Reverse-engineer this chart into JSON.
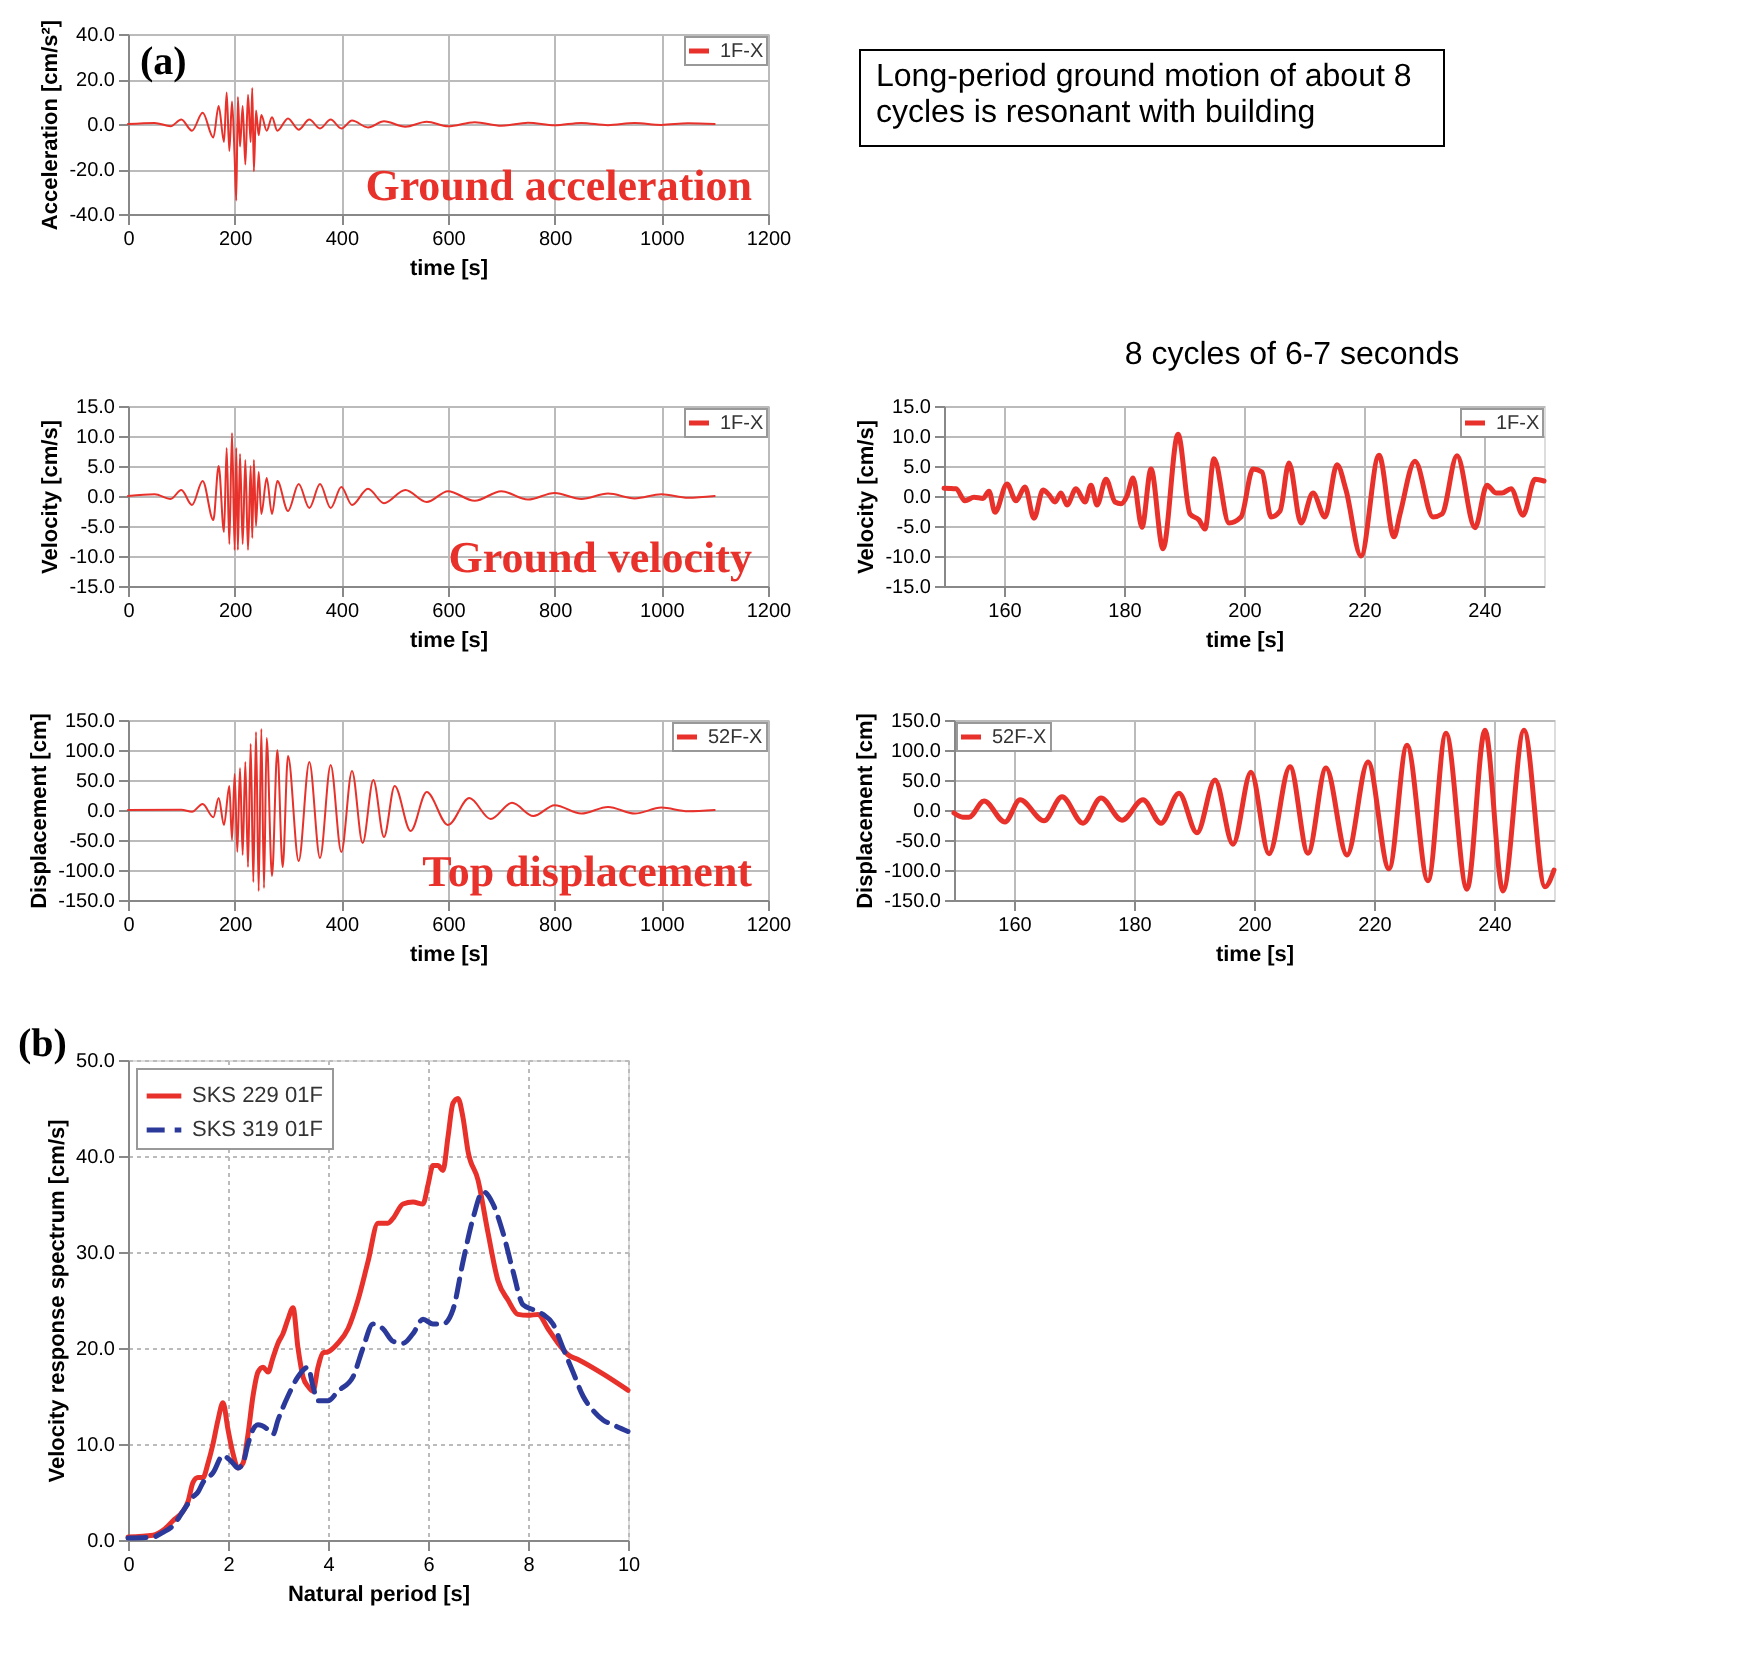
{
  "chart_data": [
    {
      "type": "line",
      "xlabel": "time [s]",
      "ylabel": "Acceleration [cm/s²]",
      "xlim": [
        0,
        1200
      ],
      "ylim": [
        -40,
        40
      ],
      "xticks": [
        0,
        200,
        400,
        600,
        800,
        1000,
        1200
      ],
      "yticks": [
        {
          "value": -40,
          "label": "-40.0"
        },
        {
          "value": -20,
          "label": "-20.0"
        },
        {
          "value": 0,
          "label": "0.0"
        },
        {
          "value": 20,
          "label": "20.0"
        },
        {
          "value": 40,
          "label": "40.0"
        }
      ],
      "grid": true,
      "legend": "top right",
      "annotations": [
        "(a)",
        "Ground acceleration"
      ],
      "x": [
        0,
        50,
        80,
        100,
        120,
        140,
        160,
        170,
        180,
        185,
        190,
        195,
        200,
        203,
        206,
        210,
        215,
        220,
        225,
        230,
        233,
        236,
        240,
        245,
        250,
        260,
        270,
        280,
        300,
        320,
        340,
        360,
        380,
        400,
        420,
        450,
        480,
        520,
        560,
        600,
        650,
        700,
        750,
        800,
        850,
        900,
        950,
        1000,
        1050,
        1100
      ],
      "series": [
        {
          "name": "1F-X",
          "color": "#e8312a",
          "values": [
            0,
            0.5,
            -1,
            2,
            -3,
            5,
            -6,
            8,
            -8,
            14,
            -12,
            10,
            -15,
            -34,
            12,
            -10,
            8,
            -18,
            13,
            -8,
            16,
            -21,
            6,
            -5,
            4,
            -3,
            3,
            -3,
            2.5,
            -2.5,
            2,
            -2,
            2,
            -2,
            1.5,
            -1.5,
            1.2,
            -1.2,
            1,
            -1,
            0.8,
            -0.8,
            0.6,
            -0.6,
            0.5,
            -0.5,
            0.4,
            -0.4,
            0.3,
            0
          ]
        }
      ]
    },
    {
      "type": "other",
      "annotations": [
        "Long-period ground motion of about 8 cycles is resonant with building"
      ]
    },
    {
      "type": "line",
      "xlabel": "time [s]",
      "ylabel": "Velocity [cm/s]",
      "xlim": [
        0,
        1200
      ],
      "ylim": [
        -15,
        15
      ],
      "xticks": [
        0,
        200,
        400,
        600,
        800,
        1000,
        1200
      ],
      "yticks": [
        {
          "value": -15,
          "label": "-15.0"
        },
        {
          "value": -10,
          "label": "-10.0"
        },
        {
          "value": -5,
          "label": "-5.0"
        },
        {
          "value": 0,
          "label": "0.0"
        },
        {
          "value": 5,
          "label": "5.0"
        },
        {
          "value": 10,
          "label": "10.0"
        },
        {
          "value": 15,
          "label": "15.0"
        }
      ],
      "grid": true,
      "legend": "top right",
      "annotations": [
        "Ground velocity"
      ],
      "x": [
        0,
        50,
        80,
        100,
        120,
        140,
        160,
        170,
        180,
        185,
        190,
        195,
        200,
        203,
        206,
        210,
        215,
        220,
        225,
        230,
        233,
        236,
        240,
        245,
        250,
        260,
        270,
        280,
        300,
        320,
        340,
        360,
        380,
        400,
        420,
        450,
        480,
        520,
        560,
        600,
        650,
        700,
        750,
        800,
        850,
        900,
        950,
        1000,
        1050,
        1100
      ],
      "series": [
        {
          "name": "1F-X",
          "color": "#e8312a",
          "values": [
            0,
            0.3,
            -0.5,
            1,
            -1.5,
            2.5,
            -4,
            5,
            -6,
            8,
            -8,
            10.5,
            -9,
            8,
            -9,
            7,
            -8,
            6,
            -9,
            5,
            -7,
            6,
            -5,
            4,
            -3,
            3,
            -3,
            2.5,
            -2.5,
            2,
            -2,
            2,
            -2,
            1.5,
            -1.5,
            1.2,
            -1.2,
            1,
            -1,
            0.8,
            -0.8,
            0.8,
            -0.6,
            0.5,
            -0.5,
            0.4,
            -0.4,
            0.3,
            -0.3,
            0
          ]
        }
      ]
    },
    {
      "type": "line",
      "xlabel": "time [s]",
      "ylabel": "Velocity [cm/s]",
      "xlim": [
        150,
        250
      ],
      "ylim": [
        -15,
        15
      ],
      "xticks": [
        160,
        180,
        200,
        220,
        240
      ],
      "yticks": [
        {
          "value": -15,
          "label": "-15.0"
        },
        {
          "value": -10,
          "label": "-10.0"
        },
        {
          "value": -5,
          "label": "-5.0"
        },
        {
          "value": 0,
          "label": "0.0"
        },
        {
          "value": 5,
          "label": "5.0"
        },
        {
          "value": 10,
          "label": "10.0"
        },
        {
          "value": 15,
          "label": "15.0"
        }
      ],
      "grid": true,
      "legend": "top right",
      "annotations": [
        "8 cycles of 6-7 seconds"
      ],
      "x": [
        150,
        152,
        153.5,
        155,
        156.5,
        157.5,
        158.5,
        160.5,
        162,
        163.5,
        165,
        166.5,
        167.5,
        168.5,
        169.5,
        170.5,
        172,
        173.5,
        174.5,
        175.5,
        177,
        178.5,
        179.5,
        180.5,
        181.5,
        183,
        184.5,
        186.5,
        189,
        191,
        192.5,
        193.5,
        195,
        197.5,
        199.5,
        201.5,
        203,
        204.5,
        206,
        207.5,
        209.5,
        211.5,
        213.5,
        215.5,
        217,
        219.5,
        222.5,
        225,
        226,
        228.5,
        231.5,
        233,
        235.5,
        238.5,
        240.5,
        242,
        243,
        244.5,
        246.5,
        248.5,
        250
      ],
      "series": [
        {
          "name": "1F-X",
          "color": "#e8312a",
          "values": [
            1.3,
            1.2,
            -0.8,
            -0.2,
            -0.4,
            0.8,
            -2.7,
            2.0,
            -0.8,
            1.5,
            -3.7,
            1.0,
            0.2,
            -1.0,
            0.5,
            -1.5,
            1.2,
            -1.0,
            1.8,
            -1.5,
            2.8,
            -1.0,
            -1.3,
            0.0,
            3.0,
            -5.2,
            4.5,
            -8.8,
            10.3,
            -3.0,
            -4.0,
            -5.5,
            6.2,
            -4.5,
            -3.5,
            4.5,
            4.0,
            -3.5,
            -2.5,
            5.5,
            -4.5,
            0.5,
            -3.5,
            5.2,
            1.0,
            -10.0,
            6.8,
            -6.8,
            -3.0,
            5.8,
            -3.5,
            -3.0,
            6.7,
            -5.3,
            1.8,
            0.5,
            0.5,
            1.2,
            -3.2,
            2.8,
            2.5
          ]
        }
      ]
    },
    {
      "type": "line",
      "xlabel": "time [s]",
      "ylabel": "Displacement [cm]",
      "xlim": [
        0,
        1200
      ],
      "ylim": [
        -150,
        150
      ],
      "xticks": [
        0,
        200,
        400,
        600,
        800,
        1000,
        1200
      ],
      "yticks": [
        {
          "value": -150,
          "label": "-150.0"
        },
        {
          "value": -100,
          "label": "-100.0"
        },
        {
          "value": -50,
          "label": "-50.0"
        },
        {
          "value": 0,
          "label": "0.0"
        },
        {
          "value": 50,
          "label": "50.0"
        },
        {
          "value": 100,
          "label": "100.0"
        },
        {
          "value": 150,
          "label": "150.0"
        }
      ],
      "grid": true,
      "legend": "top right",
      "annotations": [
        "Top displacement"
      ],
      "x": [
        0,
        100,
        120,
        140,
        160,
        170,
        180,
        190,
        195,
        200,
        205,
        210,
        215,
        220,
        225,
        230,
        235,
        240,
        245,
        250,
        255,
        260,
        270,
        280,
        290,
        300,
        320,
        340,
        360,
        380,
        400,
        420,
        440,
        460,
        480,
        500,
        530,
        560,
        600,
        640,
        680,
        720,
        760,
        800,
        850,
        900,
        950,
        1000,
        1050,
        1100
      ],
      "series": [
        {
          "name": "52F-X",
          "color": "#e8312a",
          "values": [
            0,
            0.5,
            -3,
            10,
            -12,
            20,
            -25,
            40,
            -50,
            60,
            -70,
            70,
            -75,
            80,
            -95,
            110,
            -120,
            130,
            -135,
            135,
            -130,
            120,
            -110,
            100,
            -95,
            90,
            -85,
            80,
            -80,
            75,
            -70,
            65,
            -55,
            50,
            -45,
            40,
            -35,
            30,
            -25,
            20,
            -15,
            12,
            -10,
            8,
            -6,
            5,
            -6,
            4,
            -2,
            0
          ]
        }
      ]
    },
    {
      "type": "line",
      "xlabel": "time [s]",
      "ylabel": "Displacement [cm]",
      "xlim": [
        150,
        250
      ],
      "ylim": [
        -150,
        150
      ],
      "xticks": [
        160,
        180,
        200,
        220,
        240
      ],
      "yticks": [
        {
          "value": -150,
          "label": "-150.0"
        },
        {
          "value": -100,
          "label": "-100.0"
        },
        {
          "value": -50,
          "label": "-50.0"
        },
        {
          "value": 0,
          "label": "0.0"
        },
        {
          "value": 50,
          "label": "50.0"
        },
        {
          "value": 100,
          "label": "100.0"
        },
        {
          "value": 150,
          "label": "150.0"
        }
      ],
      "grid": true,
      "legend": "top left",
      "x": [
        150,
        151.5,
        152.5,
        155,
        158.5,
        161,
        165,
        168,
        171.5,
        174.5,
        178,
        181.5,
        184.5,
        187.5,
        190.5,
        193.5,
        196.5,
        199.5,
        202.5,
        206,
        209,
        212,
        215.5,
        219,
        222.5,
        225.5,
        229,
        232,
        235.5,
        238.5,
        241.5,
        245,
        248.5,
        250
      ],
      "series": [
        {
          "name": "52F-X",
          "color": "#e8312a",
          "values": [
            -5,
            -12,
            -12,
            15,
            -20,
            17,
            -18,
            22,
            -22,
            20,
            -17,
            17,
            -22,
            28,
            -38,
            50,
            -57,
            63,
            -73,
            72,
            -72,
            70,
            -75,
            80,
            -98,
            108,
            -118,
            128,
            -132,
            133,
            -135,
            133,
            -128,
            -100
          ]
        }
      ]
    },
    {
      "type": "line",
      "xlabel": "Natural period [s]",
      "ylabel": "Velocity response spectrum [cm/s]",
      "xlim": [
        0,
        10
      ],
      "ylim": [
        0,
        50
      ],
      "xticks": [
        0,
        2,
        4,
        6,
        8,
        10
      ],
      "yticks": [
        {
          "value": 0,
          "label": "0.0"
        },
        {
          "value": 10,
          "label": "10.0"
        },
        {
          "value": 20,
          "label": "20.0"
        },
        {
          "value": 30,
          "label": "30.0"
        },
        {
          "value": 40,
          "label": "40.0"
        },
        {
          "value": 50,
          "label": "50.0"
        }
      ],
      "grid": true,
      "legend": "top left",
      "annotations": [
        "(b)"
      ],
      "series": [
        {
          "name": "SKS 229 01F",
          "color": "#e8312a",
          "line_style": "solid",
          "x": [
            0,
            0.5,
            0.7,
            0.9,
            1.1,
            1.2,
            1.3,
            1.4,
            1.5,
            1.6,
            1.7,
            1.8,
            1.9,
            2.0,
            2.1,
            2.2,
            2.3,
            2.4,
            2.5,
            2.6,
            2.7,
            2.8,
            2.9,
            3.0,
            3.1,
            3.2,
            3.3,
            3.4,
            3.5,
            3.6,
            3.7,
            3.8,
            3.9,
            4.0,
            4.2,
            4.4,
            4.6,
            4.8,
            5.0,
            5.2,
            5.3,
            5.5,
            5.7,
            5.9,
            6.0,
            6.1,
            6.2,
            6.3,
            6.4,
            6.5,
            6.6,
            6.7,
            6.8,
            7.0,
            7.2,
            7.4,
            7.6,
            7.8,
            8.0,
            8.2,
            8.4,
            8.6,
            8.8,
            9.0,
            9.5,
            10
          ],
          "values": [
            0.3,
            0.5,
            1,
            2,
            3,
            4,
            6,
            6.5,
            6.5,
            8,
            10,
            12.5,
            14.3,
            11.5,
            9,
            7.5,
            8,
            11,
            15,
            17.5,
            18,
            17.5,
            19,
            20.5,
            21.5,
            23,
            24.2,
            20,
            17,
            16,
            15.5,
            18,
            19.5,
            19.6,
            20.5,
            22,
            25,
            29,
            33,
            33,
            33.5,
            35,
            35.2,
            35,
            37,
            39,
            39,
            38.5,
            42,
            45.5,
            46,
            44,
            40.5,
            37.5,
            32,
            27,
            25,
            23.5,
            23.4,
            23.5,
            22,
            20.5,
            19.3,
            18.8,
            17.3,
            15.6
          ]
        },
        {
          "name": "SKS 319 01F",
          "color": "#2b3a9a",
          "line_style": "dashed",
          "x": [
            0,
            0.5,
            0.7,
            0.9,
            1.1,
            1.3,
            1.4,
            1.5,
            1.7,
            1.9,
            2.0,
            2.1,
            2.2,
            2.3,
            2.4,
            2.5,
            2.6,
            2.8,
            2.9,
            3.0,
            3.2,
            3.4,
            3.6,
            3.7,
            3.8,
            4.0,
            4.2,
            4.5,
            4.7,
            4.9,
            5.1,
            5.3,
            5.5,
            5.7,
            5.9,
            6.1,
            6.3,
            6.5,
            6.7,
            6.9,
            7.1,
            7.3,
            7.5,
            7.7,
            7.9,
            8.1,
            8.3,
            8.5,
            8.7,
            8.9,
            9.1,
            9.3,
            9.5,
            9.7,
            10
          ],
          "values": [
            0.2,
            0.3,
            0.8,
            1.5,
            3,
            4.5,
            5,
            6,
            7,
            8.8,
            8.5,
            8,
            7.5,
            8,
            10,
            11.5,
            12,
            11.5,
            11,
            12.5,
            15,
            17,
            18,
            16,
            14.5,
            14.5,
            15.5,
            17,
            20,
            22.5,
            22,
            20.7,
            20.5,
            21.5,
            23,
            22.5,
            22.5,
            24,
            29,
            33.5,
            36.3,
            35,
            32,
            28,
            24.5,
            24,
            23.5,
            22.5,
            20,
            17.5,
            15,
            13.5,
            12.5,
            12,
            11.3
          ]
        }
      ]
    }
  ]
}
